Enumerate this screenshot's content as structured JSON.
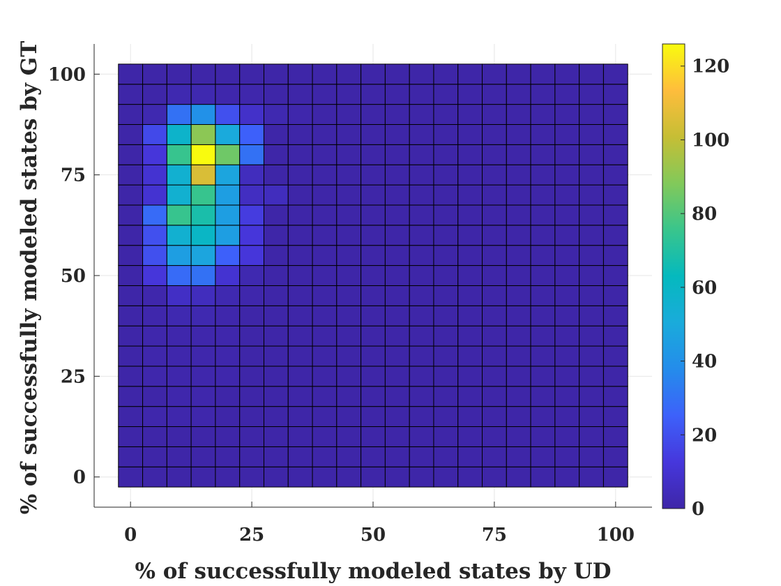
{
  "chart_data": {
    "type": "heatmap",
    "xlabel": "% of successfully modeled states by UD",
    "ylabel": "% of successfully modeled states by GT",
    "x_ticks": [
      "0",
      "25",
      "50",
      "75",
      "100"
    ],
    "y_ticks": [
      "0",
      "25",
      "50",
      "75",
      "100"
    ],
    "x_tick_values": [
      0,
      25,
      50,
      75,
      100
    ],
    "y_tick_values": [
      0,
      25,
      50,
      75,
      100
    ],
    "xlim": [
      -7.5,
      107.5
    ],
    "ylim": [
      -7.5,
      107.5
    ],
    "bin_width": 5,
    "x_bin_centers": [
      0,
      5,
      10,
      15,
      20,
      25,
      30,
      35,
      40,
      45,
      50,
      55,
      60,
      65,
      70,
      75,
      80,
      85,
      90,
      95,
      100
    ],
    "y_bin_centers": [
      0,
      5,
      10,
      15,
      20,
      25,
      30,
      35,
      40,
      45,
      50,
      55,
      60,
      65,
      70,
      75,
      80,
      85,
      90,
      95,
      100
    ],
    "colormap": "parula",
    "colorbar": {
      "range": [
        0,
        126
      ],
      "ticks": [
        "0",
        "20",
        "40",
        "60",
        "80",
        "100",
        "120"
      ],
      "tick_values": [
        0,
        20,
        40,
        60,
        80,
        100,
        120
      ]
    },
    "values": [
      [
        0,
        0,
        0,
        0,
        0,
        0,
        0,
        0,
        0,
        0,
        0,
        0,
        0,
        0,
        0,
        0,
        0,
        0,
        0,
        0,
        0
      ],
      [
        0,
        0,
        0,
        0,
        0,
        0,
        0,
        0,
        0,
        0,
        0,
        0,
        0,
        0,
        0,
        0,
        0,
        0,
        0,
        0,
        0
      ],
      [
        0,
        0,
        0,
        0,
        0,
        0,
        0,
        0,
        0,
        0,
        0,
        0,
        0,
        0,
        0,
        0,
        0,
        0,
        0,
        0,
        0
      ],
      [
        0,
        1,
        1,
        1,
        0,
        0,
        0,
        0,
        0,
        0,
        0,
        0,
        0,
        0,
        0,
        0,
        0,
        0,
        0,
        0,
        0
      ],
      [
        0,
        0,
        1,
        1,
        0,
        0,
        0,
        0,
        0,
        0,
        0,
        0,
        0,
        0,
        0,
        0,
        0,
        0,
        0,
        0,
        0
      ],
      [
        0,
        1,
        1,
        1,
        1,
        0,
        0,
        0,
        0,
        0,
        0,
        0,
        0,
        0,
        0,
        0,
        0,
        0,
        0,
        0,
        0
      ],
      [
        0,
        1,
        1,
        1,
        1,
        0,
        0,
        0,
        0,
        0,
        0,
        0,
        0,
        0,
        0,
        0,
        0,
        0,
        0,
        0,
        0
      ],
      [
        0,
        1,
        1,
        1,
        1,
        0,
        0,
        0,
        0,
        0,
        0,
        0,
        0,
        0,
        0,
        0,
        0,
        0,
        0,
        0,
        0
      ],
      [
        0,
        1,
        2,
        2,
        1,
        0,
        0,
        0,
        0,
        0,
        0,
        0,
        0,
        0,
        0,
        0,
        0,
        0,
        0,
        0,
        0
      ],
      [
        0,
        1,
        7,
        5,
        2,
        1,
        0,
        0,
        0,
        0,
        0,
        0,
        0,
        0,
        0,
        0,
        0,
        0,
        0,
        0,
        0
      ],
      [
        0,
        12,
        28,
        30,
        10,
        2,
        0,
        0,
        0,
        0,
        0,
        0,
        0,
        0,
        0,
        0,
        0,
        0,
        0,
        0,
        0
      ],
      [
        0,
        20,
        45,
        48,
        25,
        12,
        0,
        0,
        0,
        0,
        0,
        0,
        0,
        0,
        0,
        0,
        0,
        0,
        0,
        0,
        0
      ],
      [
        0,
        20,
        55,
        60,
        45,
        12,
        0,
        0,
        0,
        0,
        0,
        0,
        0,
        0,
        0,
        0,
        0,
        0,
        0,
        0,
        0
      ],
      [
        0,
        28,
        75,
        68,
        45,
        14,
        0,
        0,
        0,
        0,
        0,
        0,
        0,
        0,
        0,
        0,
        0,
        0,
        0,
        0,
        0
      ],
      [
        0,
        10,
        55,
        75,
        45,
        6,
        5,
        0,
        0,
        0,
        0,
        0,
        0,
        0,
        0,
        0,
        0,
        0,
        0,
        0,
        0
      ],
      [
        0,
        10,
        55,
        105,
        48,
        5,
        0,
        0,
        0,
        0,
        0,
        0,
        0,
        0,
        0,
        0,
        0,
        0,
        0,
        0,
        0
      ],
      [
        0,
        12,
        75,
        126,
        85,
        30,
        0,
        0,
        0,
        0,
        0,
        0,
        0,
        0,
        0,
        0,
        0,
        0,
        0,
        0,
        0
      ],
      [
        0,
        18,
        58,
        90,
        50,
        25,
        0,
        0,
        0,
        0,
        0,
        0,
        0,
        0,
        0,
        0,
        0,
        0,
        0,
        0,
        0
      ],
      [
        0,
        2,
        30,
        40,
        20,
        8,
        2,
        1,
        0,
        0,
        0,
        0,
        0,
        0,
        0,
        0,
        0,
        0,
        0,
        0,
        0
      ],
      [
        0,
        0,
        2,
        2,
        1,
        1,
        0,
        0,
        0,
        0,
        0,
        0,
        0,
        0,
        0,
        0,
        0,
        0,
        0,
        0,
        0
      ],
      [
        0,
        0,
        0,
        0,
        0,
        0,
        0,
        0,
        0,
        0,
        0,
        0,
        0,
        0,
        0,
        0,
        0,
        0,
        0,
        0,
        0
      ]
    ]
  }
}
